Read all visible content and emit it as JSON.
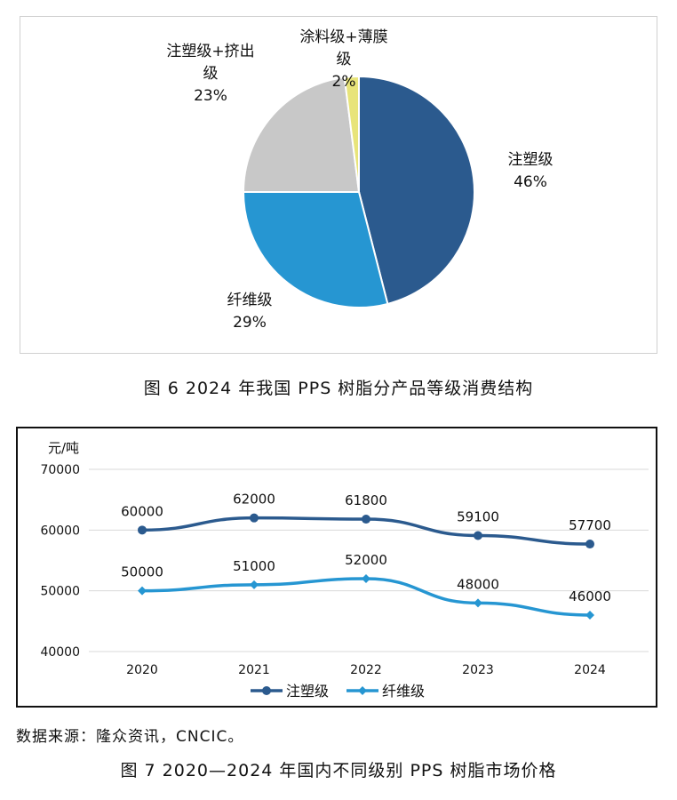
{
  "chart_data": [
    {
      "type": "pie",
      "title": "",
      "slices": [
        {
          "label_lines": [
            "注塑级"
          ],
          "pct_text": "46%",
          "value": 46,
          "color": "#2b5a8e"
        },
        {
          "label_lines": [
            "纤维级"
          ],
          "pct_text": "29%",
          "value": 29,
          "color": "#2696d2"
        },
        {
          "label_lines": [
            "注塑级+挤出",
            "级"
          ],
          "pct_text": "23%",
          "value": 23,
          "color": "#c8c8c8"
        },
        {
          "label_lines": [
            "涂料级+薄膜",
            "级"
          ],
          "pct_text": "2%",
          "value": 2,
          "color": "#e8e47a"
        }
      ],
      "start": "12 o'clock",
      "direction": "clockwise"
    },
    {
      "type": "line",
      "ylabel": "元/吨",
      "x": [
        "2020",
        "2021",
        "2022",
        "2023",
        "2024"
      ],
      "yticks": [
        "70000",
        "60000",
        "50000",
        "40000"
      ],
      "ylim": [
        40000,
        70000
      ],
      "grid": true,
      "legend": "bottom",
      "series": [
        {
          "name": "注塑级",
          "values": [
            60000,
            62000,
            61800,
            59100,
            57700
          ],
          "labels": [
            "60000",
            "62000",
            "61800",
            "59100",
            "57700"
          ],
          "color": "#2b5a8e",
          "marker": "circle"
        },
        {
          "name": "纤维级",
          "values": [
            50000,
            51000,
            52000,
            48000,
            46000
          ],
          "labels": [
            "50000",
            "51000",
            "52000",
            "48000",
            "46000"
          ],
          "color": "#2696d2",
          "marker": "diamond"
        }
      ]
    }
  ],
  "captions": {
    "fig6": "图 6  2024 年我国 PPS 树脂分产品等级消费结构",
    "source": "数据来源：隆众资讯，CNCIC。",
    "fig7": "图 7  2020—2024 年国内不同级别 PPS 树脂市场价格"
  }
}
